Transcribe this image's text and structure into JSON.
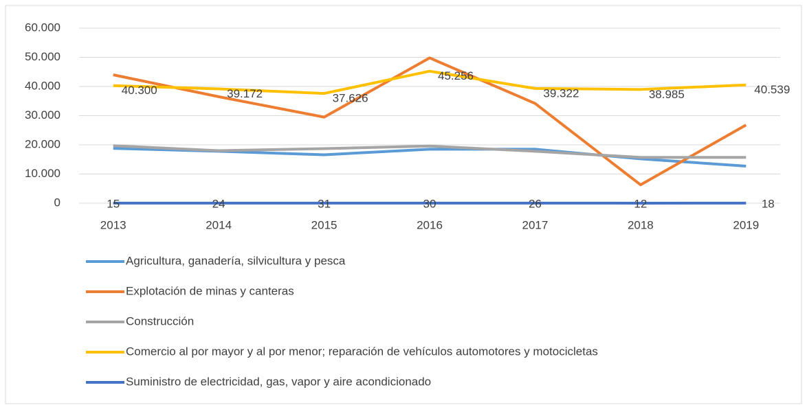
{
  "chart_data": {
    "type": "line",
    "categories": [
      "2013",
      "2014",
      "2015",
      "2016",
      "2017",
      "2018",
      "2019"
    ],
    "ylim": [
      0,
      60000
    ],
    "yticks": [
      0,
      {
        "value": 10000,
        "label": "10.000"
      },
      {
        "value": 20000,
        "label": "20.000"
      },
      {
        "value": 30000,
        "label": "30.000"
      },
      {
        "value": 40000,
        "label": "40.000"
      },
      {
        "value": 50000,
        "label": "50.000"
      },
      {
        "value": 60000,
        "label": "60.000"
      }
    ],
    "grid": true,
    "legend": "bottom",
    "series": [
      {
        "name": "Agricultura, ganadería, silvicultura y pesca",
        "color": "#5b9bd5",
        "values": [
          18800,
          17800,
          16600,
          18500,
          18500,
          15200,
          12700
        ]
      },
      {
        "name": "Explotación de minas y canteras",
        "color": "#ed7d31",
        "values": [
          44000,
          36500,
          29500,
          49800,
          34200,
          6300,
          26800
        ]
      },
      {
        "name": "Construcción",
        "color": "#a5a5a5",
        "values": [
          19700,
          18000,
          18700,
          19600,
          17800,
          15700,
          15700
        ]
      },
      {
        "name": "Comercio al por mayor y al por menor; reparación de vehículos automotores y motocicletas",
        "color": "#ffc000",
        "values": [
          40300,
          39172,
          37626,
          45256,
          39322,
          38985,
          40539
        ],
        "value_labels": [
          "40.300",
          "39.172",
          "37.626",
          "45.256",
          "39.322",
          "38.985",
          "40.539"
        ],
        "data_labels": "right"
      },
      {
        "name": "Suministro de electricidad, gas, vapor y aire acondicionado",
        "color": "#4472c4",
        "values": [
          15,
          24,
          31,
          30,
          26,
          12,
          18
        ],
        "data_labels": "center"
      }
    ]
  }
}
